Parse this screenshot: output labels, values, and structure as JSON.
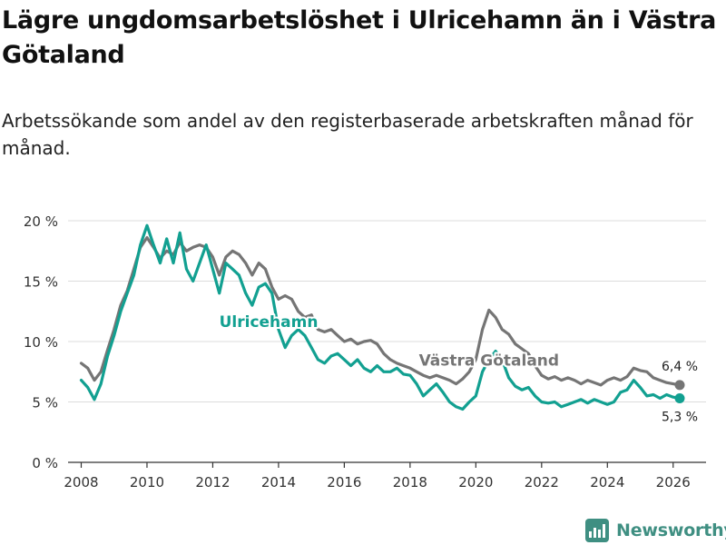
{
  "title": "Lägre ungdomsarbetslöshet i Ulricehamn än i Västra Götaland",
  "subtitle": "Arbetssökande som andel av den registerbaserade arbetskraften månad för månad.",
  "brand": {
    "name": "Newsworthy",
    "icon": "newsworthy-logo-icon"
  },
  "colors": {
    "ulricehamn": "#12a091",
    "vastra_gotaland": "#757575",
    "grid": "#dddddd",
    "brand": "#3f8f82"
  },
  "chart_data": {
    "type": "line",
    "title": "Lägre ungdomsarbetslöshet i Ulricehamn än i Västra Götaland",
    "xlabel": "",
    "ylabel": "",
    "xlim": [
      2007.6,
      2027.0
    ],
    "ylim": [
      0,
      20
    ],
    "grid": true,
    "x_ticks": [
      {
        "value": 2008,
        "label": "2008"
      },
      {
        "value": 2010,
        "label": "2010"
      },
      {
        "value": 2012,
        "label": "2012"
      },
      {
        "value": 2014,
        "label": "2014"
      },
      {
        "value": 2016,
        "label": "2016"
      },
      {
        "value": 2018,
        "label": "2018"
      },
      {
        "value": 2020,
        "label": "2020"
      },
      {
        "value": 2022,
        "label": "2022"
      },
      {
        "value": 2024,
        "label": "2024"
      },
      {
        "value": 2026,
        "label": "2026"
      }
    ],
    "y_ticks": [
      {
        "value": 0,
        "label": "0 %"
      },
      {
        "value": 5,
        "label": "5 %"
      },
      {
        "value": 10,
        "label": "10 %"
      },
      {
        "value": 15,
        "label": "15 %"
      },
      {
        "value": 20,
        "label": "20 %"
      }
    ],
    "series": [
      {
        "name": "Västra Götaland",
        "color": "#757575",
        "points": [
          [
            2008.0,
            8.2
          ],
          [
            2008.2,
            7.8
          ],
          [
            2008.4,
            6.8
          ],
          [
            2008.6,
            7.5
          ],
          [
            2008.8,
            9.3
          ],
          [
            2009.0,
            11.0
          ],
          [
            2009.2,
            13.0
          ],
          [
            2009.4,
            14.2
          ],
          [
            2009.6,
            16.0
          ],
          [
            2009.8,
            17.8
          ],
          [
            2010.0,
            18.6
          ],
          [
            2010.2,
            17.8
          ],
          [
            2010.4,
            16.9
          ],
          [
            2010.6,
            17.5
          ],
          [
            2010.8,
            17.2
          ],
          [
            2011.0,
            18.2
          ],
          [
            2011.2,
            17.5
          ],
          [
            2011.4,
            17.8
          ],
          [
            2011.6,
            18.0
          ],
          [
            2011.8,
            17.8
          ],
          [
            2012.0,
            17.0
          ],
          [
            2012.2,
            15.5
          ],
          [
            2012.4,
            17.0
          ],
          [
            2012.6,
            17.5
          ],
          [
            2012.8,
            17.2
          ],
          [
            2013.0,
            16.5
          ],
          [
            2013.2,
            15.5
          ],
          [
            2013.4,
            16.5
          ],
          [
            2013.6,
            16.0
          ],
          [
            2013.8,
            14.5
          ],
          [
            2014.0,
            13.5
          ],
          [
            2014.2,
            13.8
          ],
          [
            2014.4,
            13.5
          ],
          [
            2014.6,
            12.5
          ],
          [
            2014.8,
            12.0
          ],
          [
            2015.0,
            12.2
          ],
          [
            2015.2,
            11.0
          ],
          [
            2015.4,
            10.8
          ],
          [
            2015.6,
            11.0
          ],
          [
            2015.8,
            10.5
          ],
          [
            2016.0,
            10.0
          ],
          [
            2016.2,
            10.2
          ],
          [
            2016.4,
            9.8
          ],
          [
            2016.6,
            10.0
          ],
          [
            2016.8,
            10.1
          ],
          [
            2017.0,
            9.8
          ],
          [
            2017.2,
            9.0
          ],
          [
            2017.4,
            8.5
          ],
          [
            2017.6,
            8.2
          ],
          [
            2017.8,
            8.0
          ],
          [
            2018.0,
            7.8
          ],
          [
            2018.2,
            7.5
          ],
          [
            2018.4,
            7.2
          ],
          [
            2018.6,
            7.0
          ],
          [
            2018.8,
            7.2
          ],
          [
            2019.0,
            7.0
          ],
          [
            2019.2,
            6.8
          ],
          [
            2019.4,
            6.5
          ],
          [
            2019.6,
            6.9
          ],
          [
            2019.8,
            7.5
          ],
          [
            2020.0,
            8.5
          ],
          [
            2020.2,
            11.0
          ],
          [
            2020.4,
            12.6
          ],
          [
            2020.6,
            12.0
          ],
          [
            2020.8,
            11.0
          ],
          [
            2021.0,
            10.6
          ],
          [
            2021.2,
            9.8
          ],
          [
            2021.4,
            9.4
          ],
          [
            2021.6,
            9.0
          ],
          [
            2021.8,
            8.0
          ],
          [
            2022.0,
            7.2
          ],
          [
            2022.2,
            6.9
          ],
          [
            2022.4,
            7.1
          ],
          [
            2022.6,
            6.8
          ],
          [
            2022.8,
            7.0
          ],
          [
            2023.0,
            6.8
          ],
          [
            2023.2,
            6.5
          ],
          [
            2023.4,
            6.8
          ],
          [
            2023.6,
            6.6
          ],
          [
            2023.8,
            6.4
          ],
          [
            2024.0,
            6.8
          ],
          [
            2024.2,
            7.0
          ],
          [
            2024.4,
            6.8
          ],
          [
            2024.6,
            7.1
          ],
          [
            2024.8,
            7.8
          ],
          [
            2025.0,
            7.6
          ],
          [
            2025.2,
            7.5
          ],
          [
            2025.4,
            7.0
          ],
          [
            2025.6,
            6.8
          ],
          [
            2025.8,
            6.6
          ],
          [
            2026.0,
            6.5
          ],
          [
            2026.2,
            6.4
          ]
        ],
        "label": "Västra Götaland",
        "end_label": "6,4 %"
      },
      {
        "name": "Ulricehamn",
        "color": "#12a091",
        "points": [
          [
            2008.0,
            6.8
          ],
          [
            2008.2,
            6.2
          ],
          [
            2008.4,
            5.2
          ],
          [
            2008.6,
            6.5
          ],
          [
            2008.8,
            8.8
          ],
          [
            2009.0,
            10.5
          ],
          [
            2009.2,
            12.5
          ],
          [
            2009.4,
            14.0
          ],
          [
            2009.6,
            15.5
          ],
          [
            2009.8,
            18.0
          ],
          [
            2010.0,
            19.6
          ],
          [
            2010.2,
            18.0
          ],
          [
            2010.4,
            16.5
          ],
          [
            2010.6,
            18.5
          ],
          [
            2010.8,
            16.5
          ],
          [
            2011.0,
            19.0
          ],
          [
            2011.2,
            16.0
          ],
          [
            2011.4,
            15.0
          ],
          [
            2011.6,
            16.5
          ],
          [
            2011.8,
            18.0
          ],
          [
            2012.0,
            16.0
          ],
          [
            2012.2,
            14.0
          ],
          [
            2012.4,
            16.5
          ],
          [
            2012.6,
            16.0
          ],
          [
            2012.8,
            15.5
          ],
          [
            2013.0,
            14.0
          ],
          [
            2013.2,
            13.0
          ],
          [
            2013.4,
            14.5
          ],
          [
            2013.6,
            14.8
          ],
          [
            2013.8,
            14.0
          ],
          [
            2014.0,
            11.0
          ],
          [
            2014.2,
            9.5
          ],
          [
            2014.4,
            10.5
          ],
          [
            2014.6,
            11.0
          ],
          [
            2014.8,
            10.5
          ],
          [
            2015.0,
            9.5
          ],
          [
            2015.2,
            8.5
          ],
          [
            2015.4,
            8.2
          ],
          [
            2015.6,
            8.8
          ],
          [
            2015.8,
            9.0
          ],
          [
            2016.0,
            8.5
          ],
          [
            2016.2,
            8.0
          ],
          [
            2016.4,
            8.5
          ],
          [
            2016.6,
            7.8
          ],
          [
            2016.8,
            7.5
          ],
          [
            2017.0,
            8.0
          ],
          [
            2017.2,
            7.5
          ],
          [
            2017.4,
            7.5
          ],
          [
            2017.6,
            7.8
          ],
          [
            2017.8,
            7.3
          ],
          [
            2018.0,
            7.2
          ],
          [
            2018.2,
            6.5
          ],
          [
            2018.4,
            5.5
          ],
          [
            2018.6,
            6.0
          ],
          [
            2018.8,
            6.5
          ],
          [
            2019.0,
            5.8
          ],
          [
            2019.2,
            5.0
          ],
          [
            2019.4,
            4.6
          ],
          [
            2019.6,
            4.4
          ],
          [
            2019.8,
            5.0
          ],
          [
            2020.0,
            5.5
          ],
          [
            2020.2,
            7.5
          ],
          [
            2020.4,
            8.5
          ],
          [
            2020.6,
            9.2
          ],
          [
            2020.8,
            8.5
          ],
          [
            2021.0,
            7.0
          ],
          [
            2021.2,
            6.3
          ],
          [
            2021.4,
            6.0
          ],
          [
            2021.6,
            6.2
          ],
          [
            2021.8,
            5.5
          ],
          [
            2022.0,
            5.0
          ],
          [
            2022.2,
            4.9
          ],
          [
            2022.4,
            5.0
          ],
          [
            2022.6,
            4.6
          ],
          [
            2022.8,
            4.8
          ],
          [
            2023.0,
            5.0
          ],
          [
            2023.2,
            5.2
          ],
          [
            2023.4,
            4.9
          ],
          [
            2023.6,
            5.2
          ],
          [
            2023.8,
            5.0
          ],
          [
            2024.0,
            4.8
          ],
          [
            2024.2,
            5.0
          ],
          [
            2024.4,
            5.8
          ],
          [
            2024.6,
            6.0
          ],
          [
            2024.8,
            6.8
          ],
          [
            2025.0,
            6.2
          ],
          [
            2025.2,
            5.5
          ],
          [
            2025.4,
            5.6
          ],
          [
            2025.6,
            5.3
          ],
          [
            2025.8,
            5.6
          ],
          [
            2026.0,
            5.4
          ],
          [
            2026.2,
            5.3
          ]
        ],
        "label": "Ulricehamn",
        "end_label": "5,3 %"
      }
    ]
  }
}
